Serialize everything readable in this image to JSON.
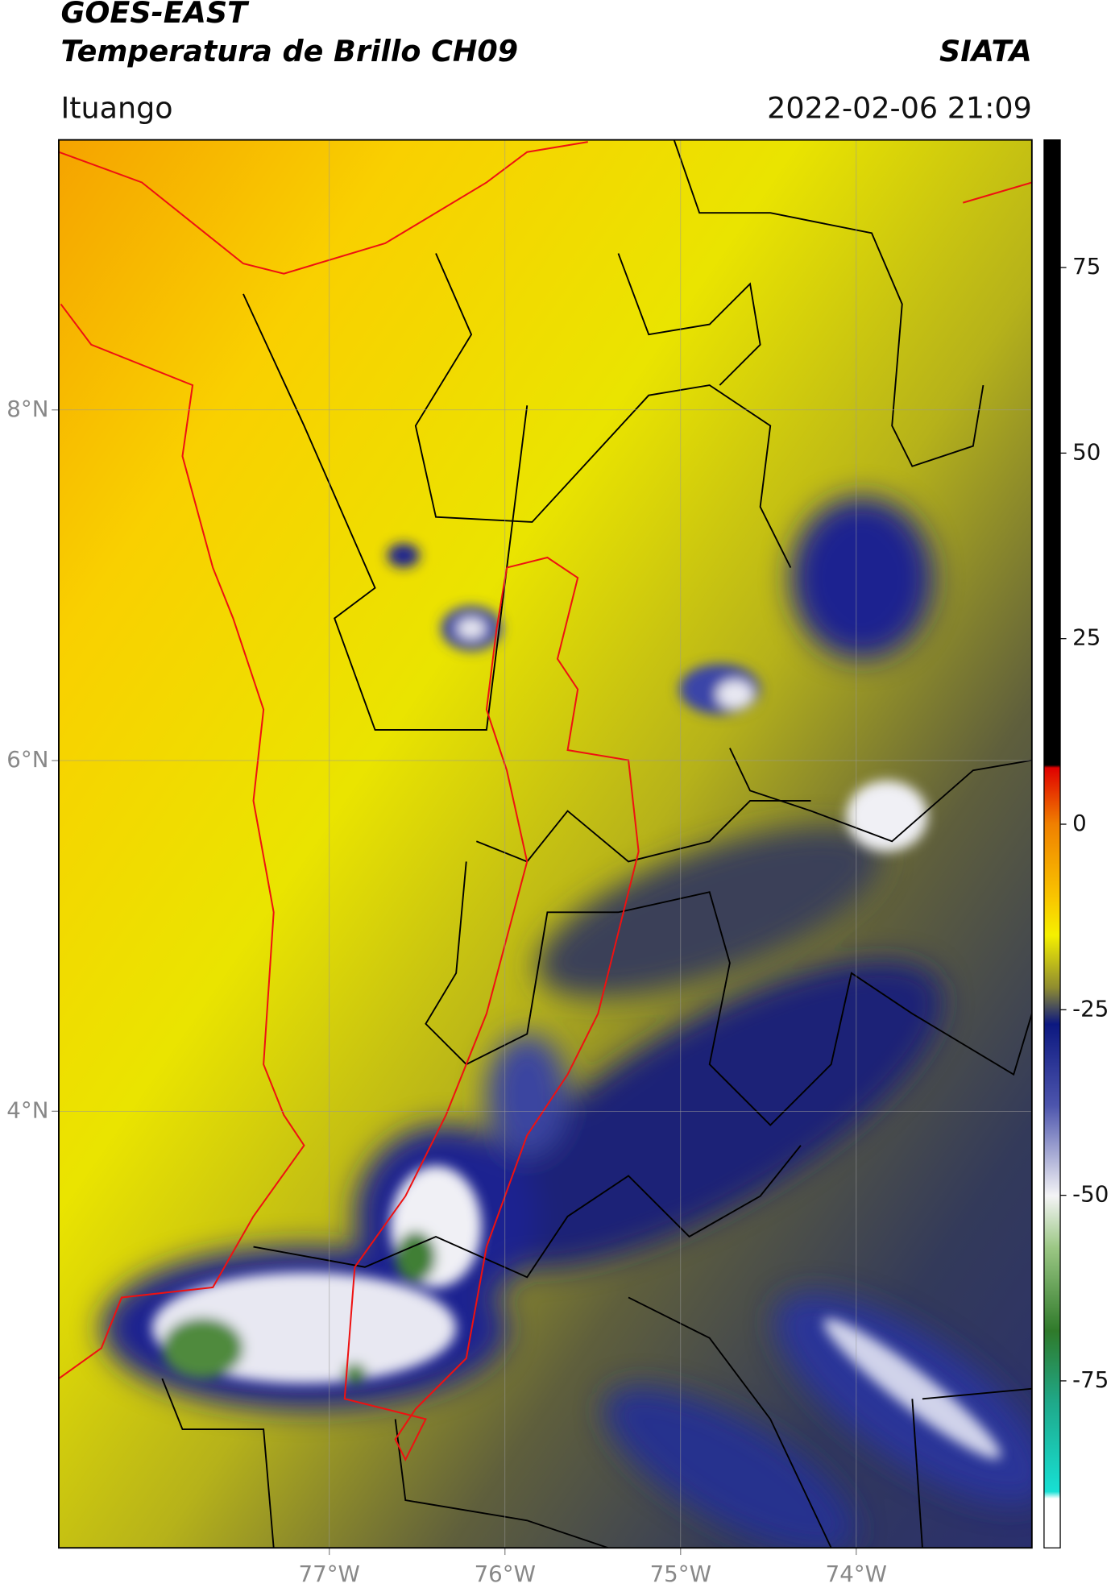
{
  "header": {
    "title": "GOES-EAST",
    "subtitle": "Temperatura de Brillo CH09",
    "source": "SIATA",
    "location": "Ituango",
    "timestamp": "2022-02-06 21:09"
  },
  "map": {
    "xlim": [
      -78.54,
      -73.0
    ],
    "ylim": [
      1.51,
      9.54
    ],
    "xticks": [
      {
        "value": -77,
        "label": "77°W"
      },
      {
        "value": -76,
        "label": "76°W"
      },
      {
        "value": -75,
        "label": "75°W"
      },
      {
        "value": -74,
        "label": "74°W"
      }
    ],
    "yticks": [
      {
        "value": 8,
        "label": "8°N"
      },
      {
        "value": 6,
        "label": "6°N"
      },
      {
        "value": 4,
        "label": "4°N"
      }
    ]
  },
  "colorbar": {
    "lim": [
      -97.5,
      92.2
    ],
    "ticks": [
      75,
      50,
      25,
      0,
      -25,
      -50,
      -75
    ]
  }
}
